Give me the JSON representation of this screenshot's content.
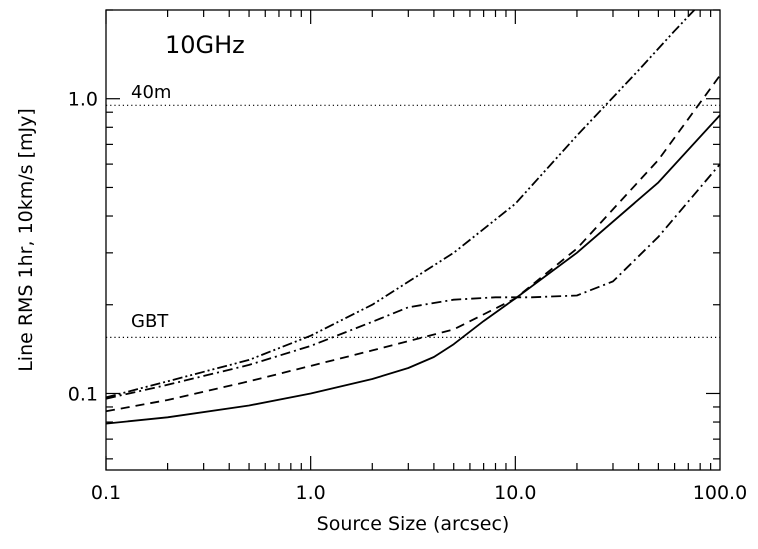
{
  "chart_data": {
    "type": "line",
    "title": "10GHz",
    "xlabel": "Source Size (arcsec)",
    "ylabel": "Line RMS 1hr, 10km/s [mJy]",
    "xscale": "log",
    "yscale": "log",
    "xlim": [
      0.1,
      100.0
    ],
    "ylim": [
      0.055,
      2.0
    ],
    "grid": false,
    "x_tick_labels": [
      {
        "value": 0.1,
        "label": "0.1"
      },
      {
        "value": 1.0,
        "label": "1.0"
      },
      {
        "value": 10.0,
        "label": "10.0"
      },
      {
        "value": 100.0,
        "label": "100.0"
      }
    ],
    "y_tick_labels": [
      {
        "value": 0.1,
        "label": "0.1"
      },
      {
        "value": 1.0,
        "label": "1.0"
      }
    ],
    "reference_lines": [
      {
        "name": "40m",
        "label": "40m",
        "y": 0.95,
        "style": "dotted"
      },
      {
        "name": "GBT",
        "label": "GBT",
        "y": 0.155,
        "style": "dotted"
      }
    ],
    "series": [
      {
        "name": "solid",
        "style": "solid",
        "x": [
          0.1,
          0.2,
          0.5,
          1.0,
          2.0,
          3.0,
          4.0,
          5.0,
          7.0,
          10.0,
          20.0,
          50.0,
          100.0
        ],
        "values": [
          0.079,
          0.083,
          0.091,
          0.1,
          0.112,
          0.122,
          0.133,
          0.147,
          0.176,
          0.21,
          0.3,
          0.52,
          0.88
        ]
      },
      {
        "name": "dashed",
        "style": "dashed",
        "x": [
          0.1,
          0.2,
          0.5,
          1.0,
          2.0,
          5.0,
          10.0,
          20.0,
          50.0,
          100.0
        ],
        "values": [
          0.087,
          0.095,
          0.11,
          0.124,
          0.14,
          0.165,
          0.21,
          0.31,
          0.62,
          1.2
        ]
      },
      {
        "name": "dash-dot",
        "style": "dashdot",
        "x": [
          0.1,
          0.2,
          0.5,
          1.0,
          2.0,
          3.0,
          5.0,
          8.0,
          12.0,
          20.0,
          30.0,
          50.0,
          100.0
        ],
        "values": [
          0.096,
          0.107,
          0.125,
          0.145,
          0.175,
          0.196,
          0.208,
          0.212,
          0.212,
          0.215,
          0.24,
          0.34,
          0.6
        ]
      },
      {
        "name": "dash-dot-dot",
        "style": "dashdotdot",
        "x": [
          0.1,
          0.2,
          0.5,
          1.0,
          2.0,
          5.0,
          10.0,
          20.0,
          40.0,
          60.0,
          75.0
        ],
        "values": [
          0.097,
          0.11,
          0.13,
          0.157,
          0.2,
          0.3,
          0.44,
          0.75,
          1.25,
          1.7,
          2.0
        ]
      }
    ]
  }
}
